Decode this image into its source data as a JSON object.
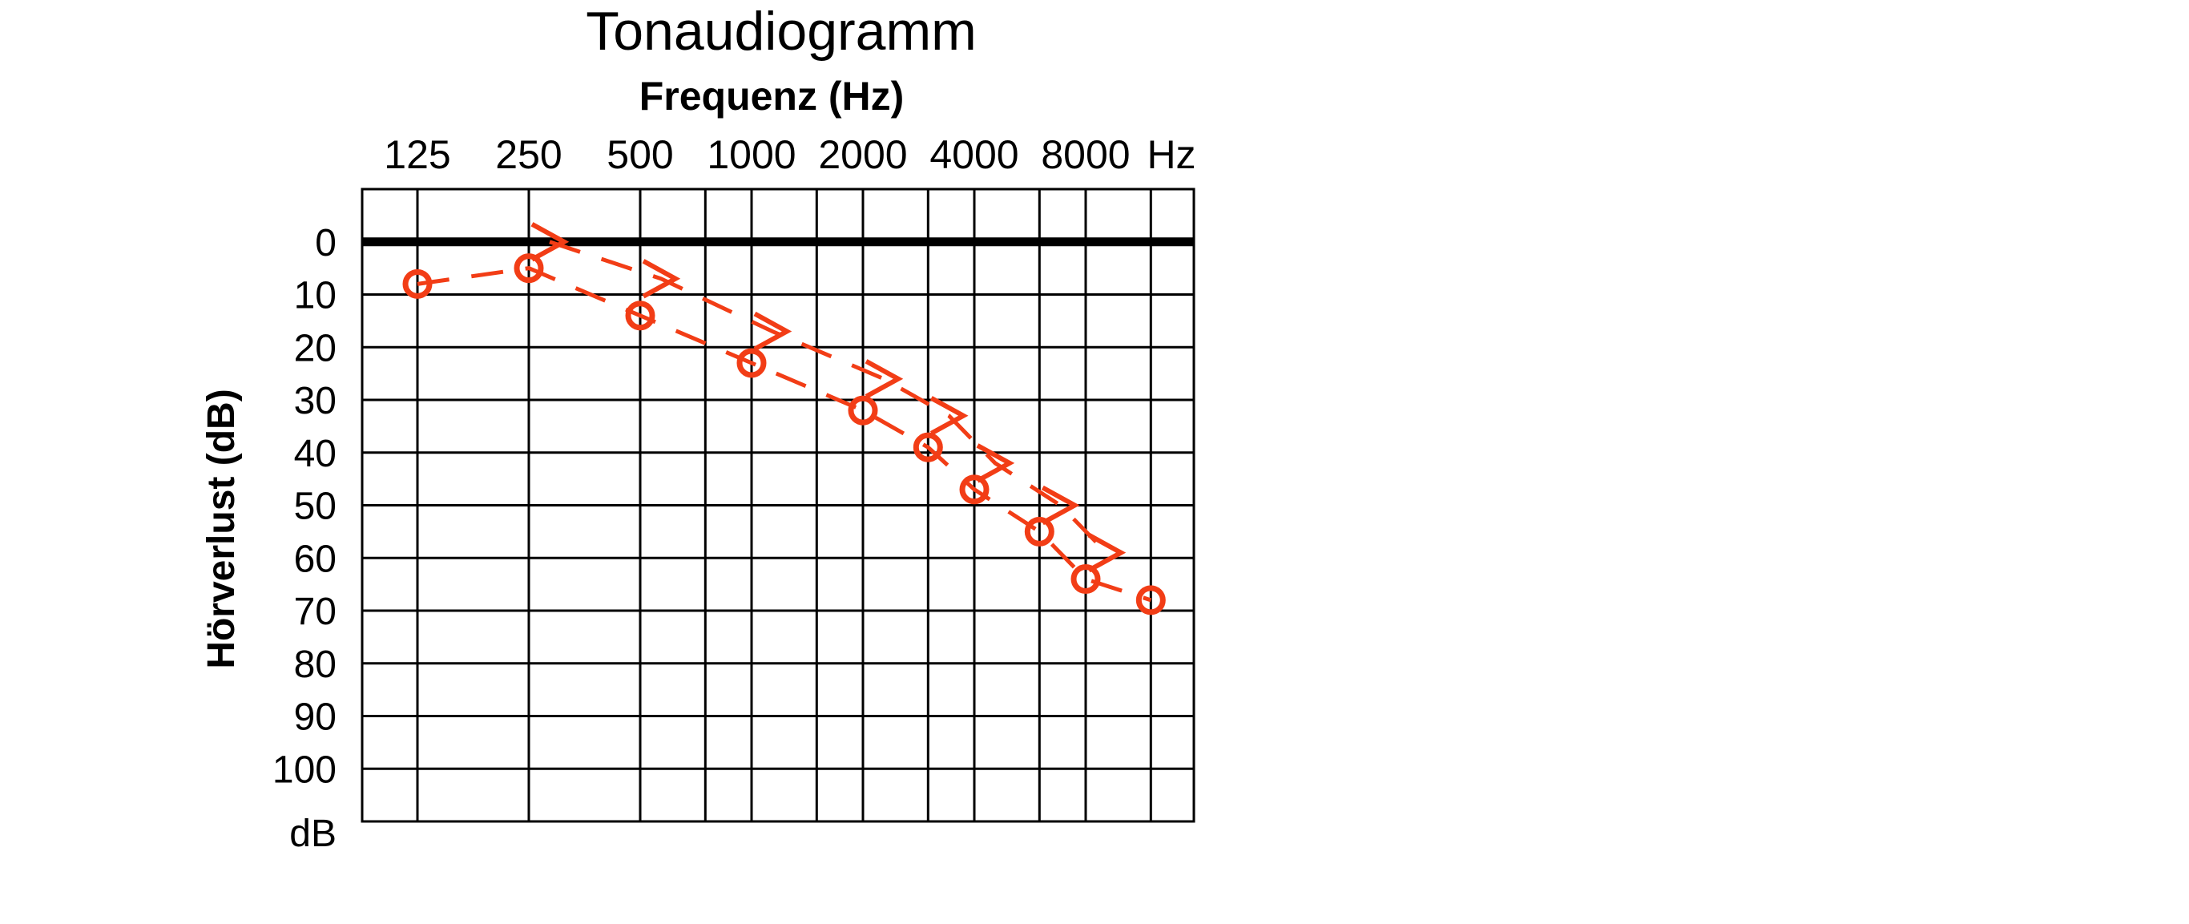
{
  "chart_data": {
    "type": "line",
    "title": "Tonaudiogramm",
    "subtitle": "Frequenz (Hz)",
    "xlabel": "Frequenz (Hz)",
    "ylabel": "Hörverlust (dB)",
    "x_ticks": [
      "125",
      "250",
      "500",
      "1000",
      "2000",
      "4000",
      "8000"
    ],
    "x_unit": "Hz",
    "y_ticks": [
      "0",
      "10",
      "20",
      "30",
      "40",
      "50",
      "60",
      "70",
      "80",
      "90",
      "100"
    ],
    "y_unit": "dB",
    "ylim": [
      -10,
      110
    ],
    "y_inverted": true,
    "grid": true,
    "colors": {
      "series": "#f23d16",
      "grid": "#000000"
    },
    "series": [
      {
        "marker": "O",
        "x": [
          125,
          250,
          500,
          1000,
          2000,
          3000,
          4000,
          6000,
          8000,
          12000
        ],
        "values": [
          8,
          5,
          14,
          23,
          32,
          39,
          47,
          55,
          64,
          68
        ]
      },
      {
        "marker": ">",
        "x": [
          250,
          500,
          1000,
          2000,
          3000,
          4000,
          6000,
          8000
        ],
        "values": [
          0,
          7,
          17,
          26,
          33,
          42,
          50,
          59
        ]
      }
    ]
  }
}
